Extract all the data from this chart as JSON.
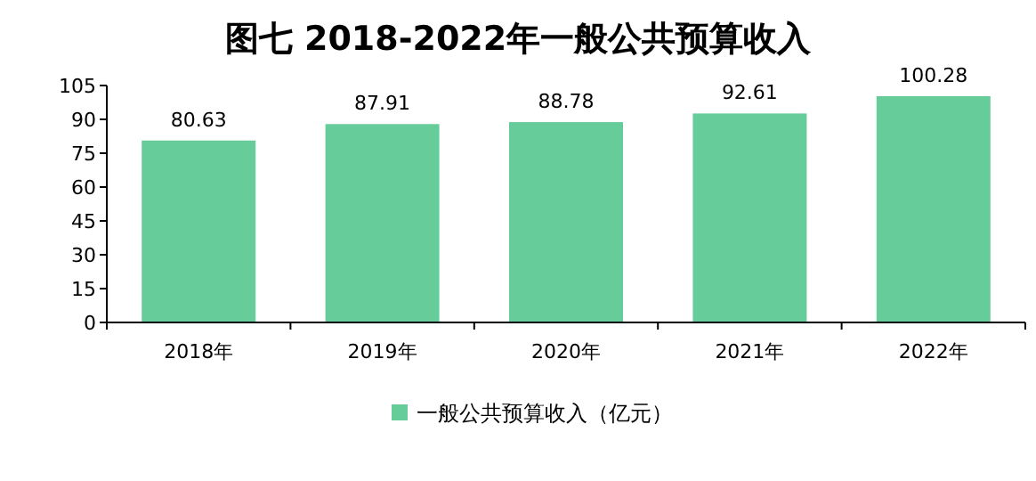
{
  "chart_data": {
    "type": "bar",
    "title": "图七    2018-2022年一般公共预算收入",
    "categories": [
      "2018年",
      "2019年",
      "2020年",
      "2021年",
      "2022年"
    ],
    "series": [
      {
        "name": "一般公共预算收入（亿元）",
        "color": "#66cc99",
        "values": [
          80.63,
          87.91,
          88.78,
          92.61,
          100.28
        ]
      }
    ],
    "ylim": [
      0,
      105
    ],
    "yticks": [
      0,
      15,
      30,
      45,
      60,
      75,
      90,
      105
    ],
    "data_labels": true,
    "legend": "bottom",
    "grid": false
  }
}
